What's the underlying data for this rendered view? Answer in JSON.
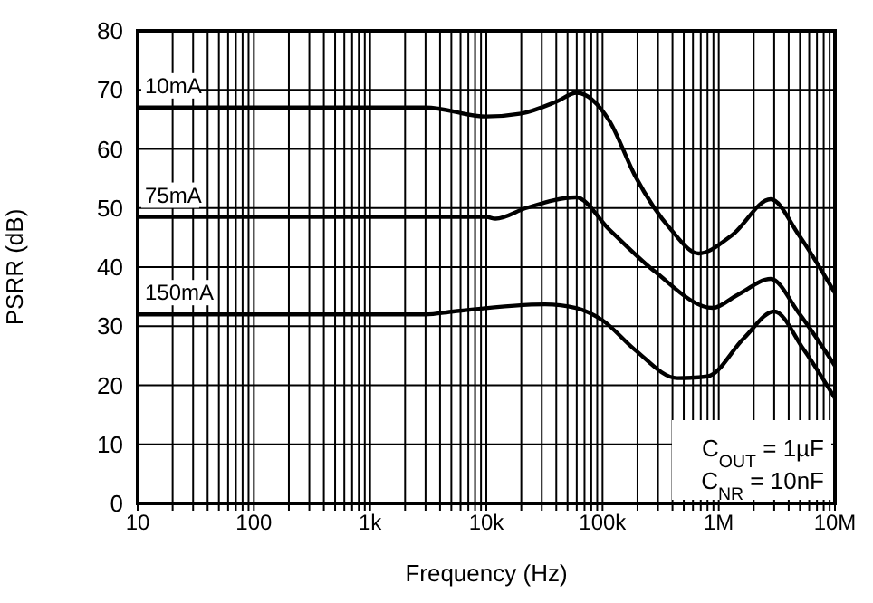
{
  "chart_data": {
    "type": "line",
    "xlabel": "Frequency (Hz)",
    "ylabel": "PSRR (dB)",
    "log": "x",
    "grid": true,
    "legend": false,
    "marker": "none",
    "line_style": "solid",
    "xlim": [
      10,
      10000000
    ],
    "ylim": [
      0,
      80
    ],
    "xticks": [
      {
        "value": 10,
        "label": "10"
      },
      {
        "value": 20,
        "label": null
      },
      {
        "value": 30,
        "label": null
      },
      {
        "value": 40,
        "label": null
      },
      {
        "value": 50,
        "label": null
      },
      {
        "value": 60,
        "label": null
      },
      {
        "value": 70,
        "label": null
      },
      {
        "value": 80,
        "label": null
      },
      {
        "value": 90,
        "label": null
      },
      {
        "value": 100,
        "label": "100"
      },
      {
        "value": 200,
        "label": null
      },
      {
        "value": 300,
        "label": null
      },
      {
        "value": 400,
        "label": null
      },
      {
        "value": 500,
        "label": null
      },
      {
        "value": 600,
        "label": null
      },
      {
        "value": 700,
        "label": null
      },
      {
        "value": 800,
        "label": null
      },
      {
        "value": 900,
        "label": null
      },
      {
        "value": 1000,
        "label": "1k"
      },
      {
        "value": 2000,
        "label": null
      },
      {
        "value": 3000,
        "label": null
      },
      {
        "value": 4000,
        "label": null
      },
      {
        "value": 5000,
        "label": null
      },
      {
        "value": 6000,
        "label": null
      },
      {
        "value": 7000,
        "label": null
      },
      {
        "value": 8000,
        "label": null
      },
      {
        "value": 9000,
        "label": null
      },
      {
        "value": 10000,
        "label": "10k"
      },
      {
        "value": 20000,
        "label": null
      },
      {
        "value": 30000,
        "label": null
      },
      {
        "value": 40000,
        "label": null
      },
      {
        "value": 50000,
        "label": null
      },
      {
        "value": 60000,
        "label": null
      },
      {
        "value": 70000,
        "label": null
      },
      {
        "value": 80000,
        "label": null
      },
      {
        "value": 90000,
        "label": null
      },
      {
        "value": 100000,
        "label": "100k"
      },
      {
        "value": 200000,
        "label": null
      },
      {
        "value": 300000,
        "label": null
      },
      {
        "value": 400000,
        "label": null
      },
      {
        "value": 500000,
        "label": null
      },
      {
        "value": 600000,
        "label": null
      },
      {
        "value": 700000,
        "label": null
      },
      {
        "value": 800000,
        "label": null
      },
      {
        "value": 900000,
        "label": null
      },
      {
        "value": 1000000,
        "label": "1M"
      },
      {
        "value": 2000000,
        "label": null
      },
      {
        "value": 3000000,
        "label": null
      },
      {
        "value": 4000000,
        "label": null
      },
      {
        "value": 5000000,
        "label": null
      },
      {
        "value": 6000000,
        "label": null
      },
      {
        "value": 7000000,
        "label": null
      },
      {
        "value": 8000000,
        "label": null
      },
      {
        "value": 9000000,
        "label": null
      },
      {
        "value": 10000000,
        "label": "10M"
      }
    ],
    "yticks": [
      0,
      10,
      20,
      30,
      40,
      50,
      60,
      70,
      80
    ],
    "annotations": [
      "C$_{OUT}$ = 1µF",
      "C$_{NR}$ = 10nF"
    ],
    "series": [
      {
        "name": "10mA",
        "color": "#000000",
        "x": [
          10,
          1000,
          3000,
          10000,
          20000,
          40000,
          60000,
          115000,
          190000,
          390000,
          670000,
          1300000,
          2800000,
          4900000,
          10000000
        ],
        "values": [
          67,
          67,
          67,
          65.5,
          66,
          68,
          69.5,
          64.7,
          55.5,
          46.3,
          42.3,
          45.4,
          51.5,
          45.4,
          35.6
        ]
      },
      {
        "name": "75mA",
        "color": "#000000",
        "x": [
          10,
          1000,
          10000,
          12000,
          22000,
          59000,
          115000,
          280000,
          890000,
          1450000,
          2800000,
          4900000,
          10000000
        ],
        "values": [
          48.5,
          48.5,
          48.5,
          48.2,
          50,
          51.8,
          46.3,
          39.3,
          33.1,
          35.3,
          38,
          32.2,
          23.3
        ]
      },
      {
        "name": "150mA",
        "color": "#000000",
        "x": [
          10,
          1000,
          3000,
          5200,
          32000,
          59000,
          100000,
          190000,
          440000,
          800000,
          1650000,
          3000000,
          5400000,
          10000000
        ],
        "values": [
          32,
          32,
          32,
          32.5,
          33.7,
          33.1,
          31,
          26,
          21.2,
          21.5,
          28,
          32.5,
          26,
          17.8
        ]
      }
    ]
  }
}
